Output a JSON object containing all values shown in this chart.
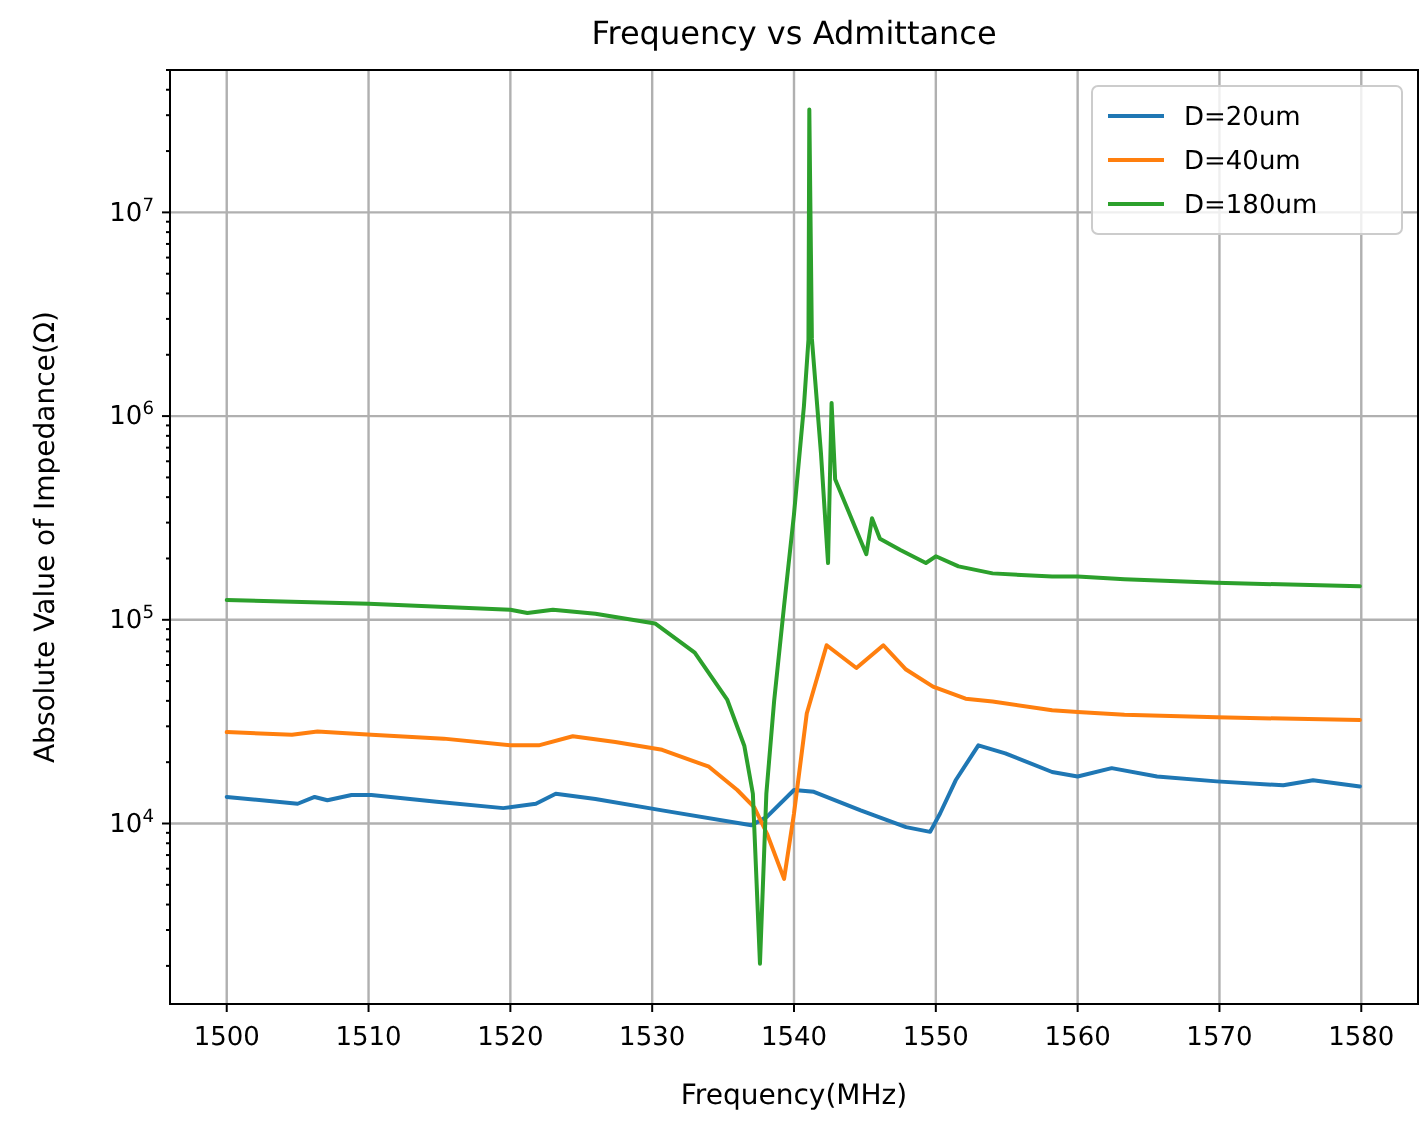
{
  "chart_data": {
    "type": "line",
    "title": "Frequency vs Admittance",
    "xlabel": "Frequency(MHz)",
    "ylabel": "Absolute Value of Impedance(Ω)",
    "log": "y",
    "grid": true,
    "legend": "top right",
    "line_style": "solid",
    "marker": "none",
    "xlim": [
      1496,
      1584
    ],
    "xticks": [
      1500,
      1510,
      1520,
      1530,
      1540,
      1550,
      1560,
      1570,
      1580
    ],
    "ylim": [
      1300,
      50000000
    ],
    "yticks": [
      {
        "value": 2000,
        "label": null
      },
      {
        "value": 3000,
        "label": null
      },
      {
        "value": 4000,
        "label": null
      },
      {
        "value": 5000,
        "label": null
      },
      {
        "value": 6000,
        "label": null
      },
      {
        "value": 7000,
        "label": null
      },
      {
        "value": 8000,
        "label": null
      },
      {
        "value": 9000,
        "label": null
      },
      {
        "value": 10000,
        "label": "10$^{4}$"
      },
      {
        "value": 20000,
        "label": null
      },
      {
        "value": 30000,
        "label": null
      },
      {
        "value": 40000,
        "label": null
      },
      {
        "value": 50000,
        "label": null
      },
      {
        "value": 60000,
        "label": null
      },
      {
        "value": 70000,
        "label": null
      },
      {
        "value": 80000,
        "label": null
      },
      {
        "value": 90000,
        "label": null
      },
      {
        "value": 100000,
        "label": "10$^{5}$"
      },
      {
        "value": 200000,
        "label": null
      },
      {
        "value": 300000,
        "label": null
      },
      {
        "value": 400000,
        "label": null
      },
      {
        "value": 500000,
        "label": null
      },
      {
        "value": 600000,
        "label": null
      },
      {
        "value": 700000,
        "label": null
      },
      {
        "value": 800000,
        "label": null
      },
      {
        "value": 900000,
        "label": null
      },
      {
        "value": 1000000,
        "label": "10$^{6}$"
      },
      {
        "value": 2000000,
        "label": null
      },
      {
        "value": 3000000,
        "label": null
      },
      {
        "value": 4000000,
        "label": null
      },
      {
        "value": 5000000,
        "label": null
      },
      {
        "value": 6000000,
        "label": null
      },
      {
        "value": 7000000,
        "label": null
      },
      {
        "value": 8000000,
        "label": null
      },
      {
        "value": 9000000,
        "label": null
      },
      {
        "value": 10000000,
        "label": "10$^{7}$"
      },
      {
        "value": 20000000,
        "label": null
      },
      {
        "value": 30000000,
        "label": null
      },
      {
        "value": 40000000,
        "label": null
      },
      {
        "value": 50000000,
        "label": null
      }
    ],
    "series": [
      {
        "name": "D=20um",
        "color": "#1f77b4",
        "x": [
          1500,
          1505,
          1506.2,
          1507.1,
          1508.8,
          1510.2,
          1514.8,
          1519.5,
          1521.8,
          1523.2,
          1526,
          1530.7,
          1537,
          1538.1,
          1540,
          1541.4,
          1544.7,
          1547.9,
          1549.6,
          1550.3,
          1551.4,
          1553,
          1554.9,
          1558.2,
          1560,
          1562.4,
          1565.6,
          1569.8,
          1574.5,
          1576.6,
          1579.9
        ],
        "values": [
          13500,
          12500,
          13500,
          13000,
          13800,
          13800,
          12800,
          11900,
          12500,
          14000,
          13200,
          11600,
          9800,
          10800,
          14600,
          14300,
          11600,
          9600,
          9100,
          11200,
          16300,
          24200,
          22100,
          17900,
          17000,
          18700,
          17000,
          16100,
          15400,
          16300,
          15200
        ]
      },
      {
        "name": "D=40um",
        "color": "#ff7f0e",
        "x": [
          1500,
          1504.6,
          1506.4,
          1510.2,
          1515.3,
          1520,
          1522,
          1524.4,
          1527.4,
          1530.7,
          1534,
          1536,
          1537.2,
          1538.1,
          1539.3,
          1540,
          1540.9,
          1542.3,
          1544.4,
          1546.3,
          1547.9,
          1549.8,
          1552.1,
          1554,
          1558.2,
          1560,
          1563.3,
          1569.8,
          1579.9
        ],
        "values": [
          28100,
          27300,
          28300,
          27300,
          26100,
          24200,
          24200,
          26800,
          25100,
          23000,
          19000,
          14600,
          12000,
          8900,
          5350,
          11200,
          34700,
          75000,
          58000,
          75000,
          57000,
          47000,
          41000,
          39700,
          36000,
          35300,
          34200,
          33200,
          32200
        ]
      },
      {
        "name": "D=180um",
        "color": "#2ca02c",
        "x": [
          1500,
          1510,
          1520,
          1521.2,
          1523,
          1526,
          1530.2,
          1533,
          1535.3,
          1536.5,
          1537.1,
          1537.6,
          1538.05,
          1538.6,
          1539.3,
          1540,
          1540.7,
          1541.02,
          1541.08,
          1541.26,
          1541.9,
          1542.4,
          1542.65,
          1542.9,
          1543.7,
          1545.1,
          1545.5,
          1546.06,
          1547.5,
          1549.3,
          1550,
          1551.6,
          1554,
          1558.2,
          1560,
          1563.3,
          1569.8,
          1579.9
        ],
        "values": [
          125000,
          120000,
          112000,
          108000,
          112000,
          107000,
          96000,
          69000,
          40400,
          24000,
          14000,
          2050,
          14000,
          40000,
          117000,
          330000,
          1120000,
          2370000,
          32000000,
          2400000,
          660000,
          190000,
          1160000,
          490000,
          360000,
          210000,
          315000,
          250000,
          220000,
          190000,
          205000,
          183000,
          169000,
          163000,
          163000,
          158000,
          152000,
          146000
        ]
      }
    ]
  }
}
